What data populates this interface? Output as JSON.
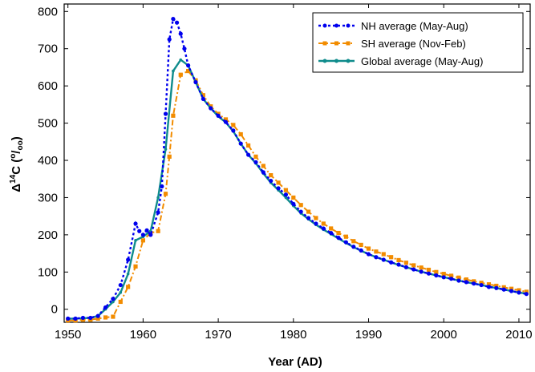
{
  "chart_data": {
    "type": "line",
    "title": "",
    "xlabel": "Year (AD)",
    "ylabel": {
      "delta": "Δ",
      "sup14": "14",
      "c": "C (",
      "permil_o": "o",
      "permil_slash": "/",
      "permil_oo": "oo",
      "close": ")"
    },
    "xlim": [
      1949.5,
      2011.5
    ],
    "ylim": [
      -35,
      820
    ],
    "xticks": [
      1950,
      1960,
      1970,
      1980,
      1990,
      2000,
      2010
    ],
    "yticks": [
      0,
      100,
      200,
      300,
      400,
      500,
      600,
      700,
      800
    ],
    "series": [
      {
        "name": "NH average (May-Aug)",
        "color": "#0000ee",
        "style": "dotted-markers",
        "x": [
          1950,
          1951,
          1952,
          1953,
          1954,
          1955,
          1956,
          1957,
          1958,
          1959,
          1959.5,
          1960,
          1960.5,
          1961,
          1962,
          1962.5,
          1963,
          1963.5,
          1964,
          1964.5,
          1965,
          1965.5,
          1966,
          1967,
          1968,
          1969,
          1970,
          1971,
          1972,
          1973,
          1974,
          1975,
          1976,
          1977,
          1978,
          1979,
          1980,
          1981,
          1982,
          1983,
          1984,
          1985,
          1986,
          1987,
          1988,
          1989,
          1990,
          1991,
          1992,
          1993,
          1994,
          1995,
          1996,
          1997,
          1998,
          1999,
          2000,
          2001,
          2002,
          2003,
          2004,
          2005,
          2006,
          2007,
          2008,
          2009,
          2010,
          2011
        ],
        "y": [
          -25,
          -25,
          -23,
          -23,
          -18,
          5,
          28,
          65,
          133,
          230,
          210,
          200,
          212,
          200,
          260,
          330,
          525,
          725,
          780,
          770,
          740,
          700,
          655,
          610,
          565,
          540,
          520,
          503,
          480,
          445,
          415,
          395,
          368,
          345,
          325,
          308,
          283,
          262,
          245,
          230,
          217,
          205,
          192,
          180,
          168,
          158,
          148,
          140,
          133,
          126,
          120,
          113,
          107,
          101,
          96,
          91,
          86,
          82,
          77,
          73,
          69,
          65,
          60,
          57,
          53,
          49,
          45,
          41
        ]
      },
      {
        "name": "SH average (Nov-Feb)",
        "color": "#f28c00",
        "style": "dashdot-markers",
        "x": [
          1950,
          1951,
          1952,
          1953,
          1954,
          1955,
          1956,
          1957,
          1958,
          1959,
          1960,
          1961,
          1962,
          1963,
          1963.5,
          1964,
          1965,
          1966,
          1967,
          1968,
          1969,
          1970,
          1971,
          1972,
          1973,
          1974,
          1975,
          1976,
          1977,
          1978,
          1979,
          1980,
          1981,
          1982,
          1983,
          1984,
          1985,
          1986,
          1987,
          1988,
          1989,
          1990,
          1991,
          1992,
          1993,
          1994,
          1995,
          1996,
          1997,
          1998,
          1999,
          2000,
          2001,
          2002,
          2003,
          2004,
          2005,
          2006,
          2007,
          2008,
          2009,
          2010,
          2011
        ],
        "y": [
          -30,
          -30,
          -28,
          -28,
          -25,
          -22,
          -20,
          20,
          60,
          115,
          185,
          205,
          210,
          310,
          410,
          520,
          630,
          640,
          615,
          575,
          545,
          525,
          510,
          495,
          470,
          440,
          410,
          385,
          360,
          340,
          320,
          300,
          280,
          262,
          245,
          230,
          217,
          205,
          195,
          183,
          173,
          163,
          155,
          148,
          140,
          132,
          125,
          118,
          112,
          106,
          100,
          95,
          90,
          85,
          80,
          75,
          71,
          67,
          63,
          59,
          55,
          51,
          47
        ]
      },
      {
        "name": "Global average (May-Aug)",
        "color": "#0f8c8c",
        "style": "solid-markers",
        "x": [
          1950,
          1951,
          1952,
          1953,
          1954,
          1955,
          1956,
          1957,
          1958,
          1959,
          1960,
          1961,
          1962,
          1963,
          1964,
          1965,
          1966,
          1967,
          1968,
          1969,
          1970,
          1971,
          1972,
          1973,
          1974,
          1975,
          1976,
          1977,
          1978,
          1979,
          1980,
          1981,
          1982,
          1983,
          1984,
          1985,
          1986,
          1987,
          1988,
          1989,
          1990,
          1991,
          1992,
          1993,
          1994,
          1995,
          1996,
          1997,
          1998,
          1999,
          2000,
          2001,
          2002,
          2003,
          2004,
          2005,
          2006,
          2007,
          2008,
          2009,
          2010,
          2011
        ],
        "y": [
          -25,
          -25,
          -24,
          -23,
          -18,
          0,
          20,
          45,
          95,
          185,
          195,
          210,
          300,
          430,
          640,
          670,
          655,
          610,
          565,
          540,
          518,
          502,
          478,
          445,
          415,
          392,
          365,
          340,
          320,
          300,
          278,
          258,
          242,
          227,
          214,
          202,
          190,
          178,
          167,
          157,
          148,
          140,
          133,
          126,
          119,
          113,
          107,
          101,
          96,
          91,
          86,
          82,
          77,
          73,
          69,
          65,
          61,
          57,
          53,
          49,
          45,
          42
        ]
      }
    ],
    "legend": {
      "position": "top-right"
    }
  }
}
